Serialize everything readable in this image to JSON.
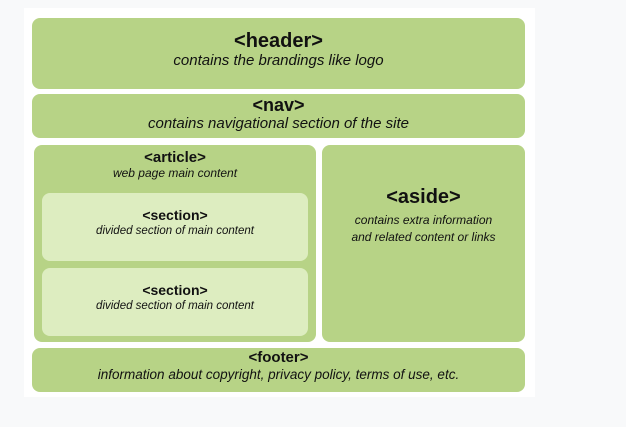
{
  "colors": {
    "background": "#f8f9fa",
    "card": "#ffffff",
    "block_fill": "#b7d386",
    "inner_fill": "#ddedc0",
    "text": "#111111"
  },
  "header": {
    "tag": "<header>",
    "description": "contains the brandings like logo"
  },
  "nav": {
    "tag": "<nav>",
    "description": "contains navigational section of the site"
  },
  "article": {
    "tag": "<article>",
    "description": "web page main content",
    "sections": [
      {
        "tag": "<section>",
        "description": "divided section of main content"
      },
      {
        "tag": "<section>",
        "description": "divided section of main content"
      }
    ]
  },
  "aside": {
    "tag": "<aside>",
    "description_line1": "contains extra information",
    "description_line2": "and related content or links"
  },
  "footer": {
    "tag": "<footer>",
    "description": "information about copyright, privacy policy, terms of use, etc."
  }
}
